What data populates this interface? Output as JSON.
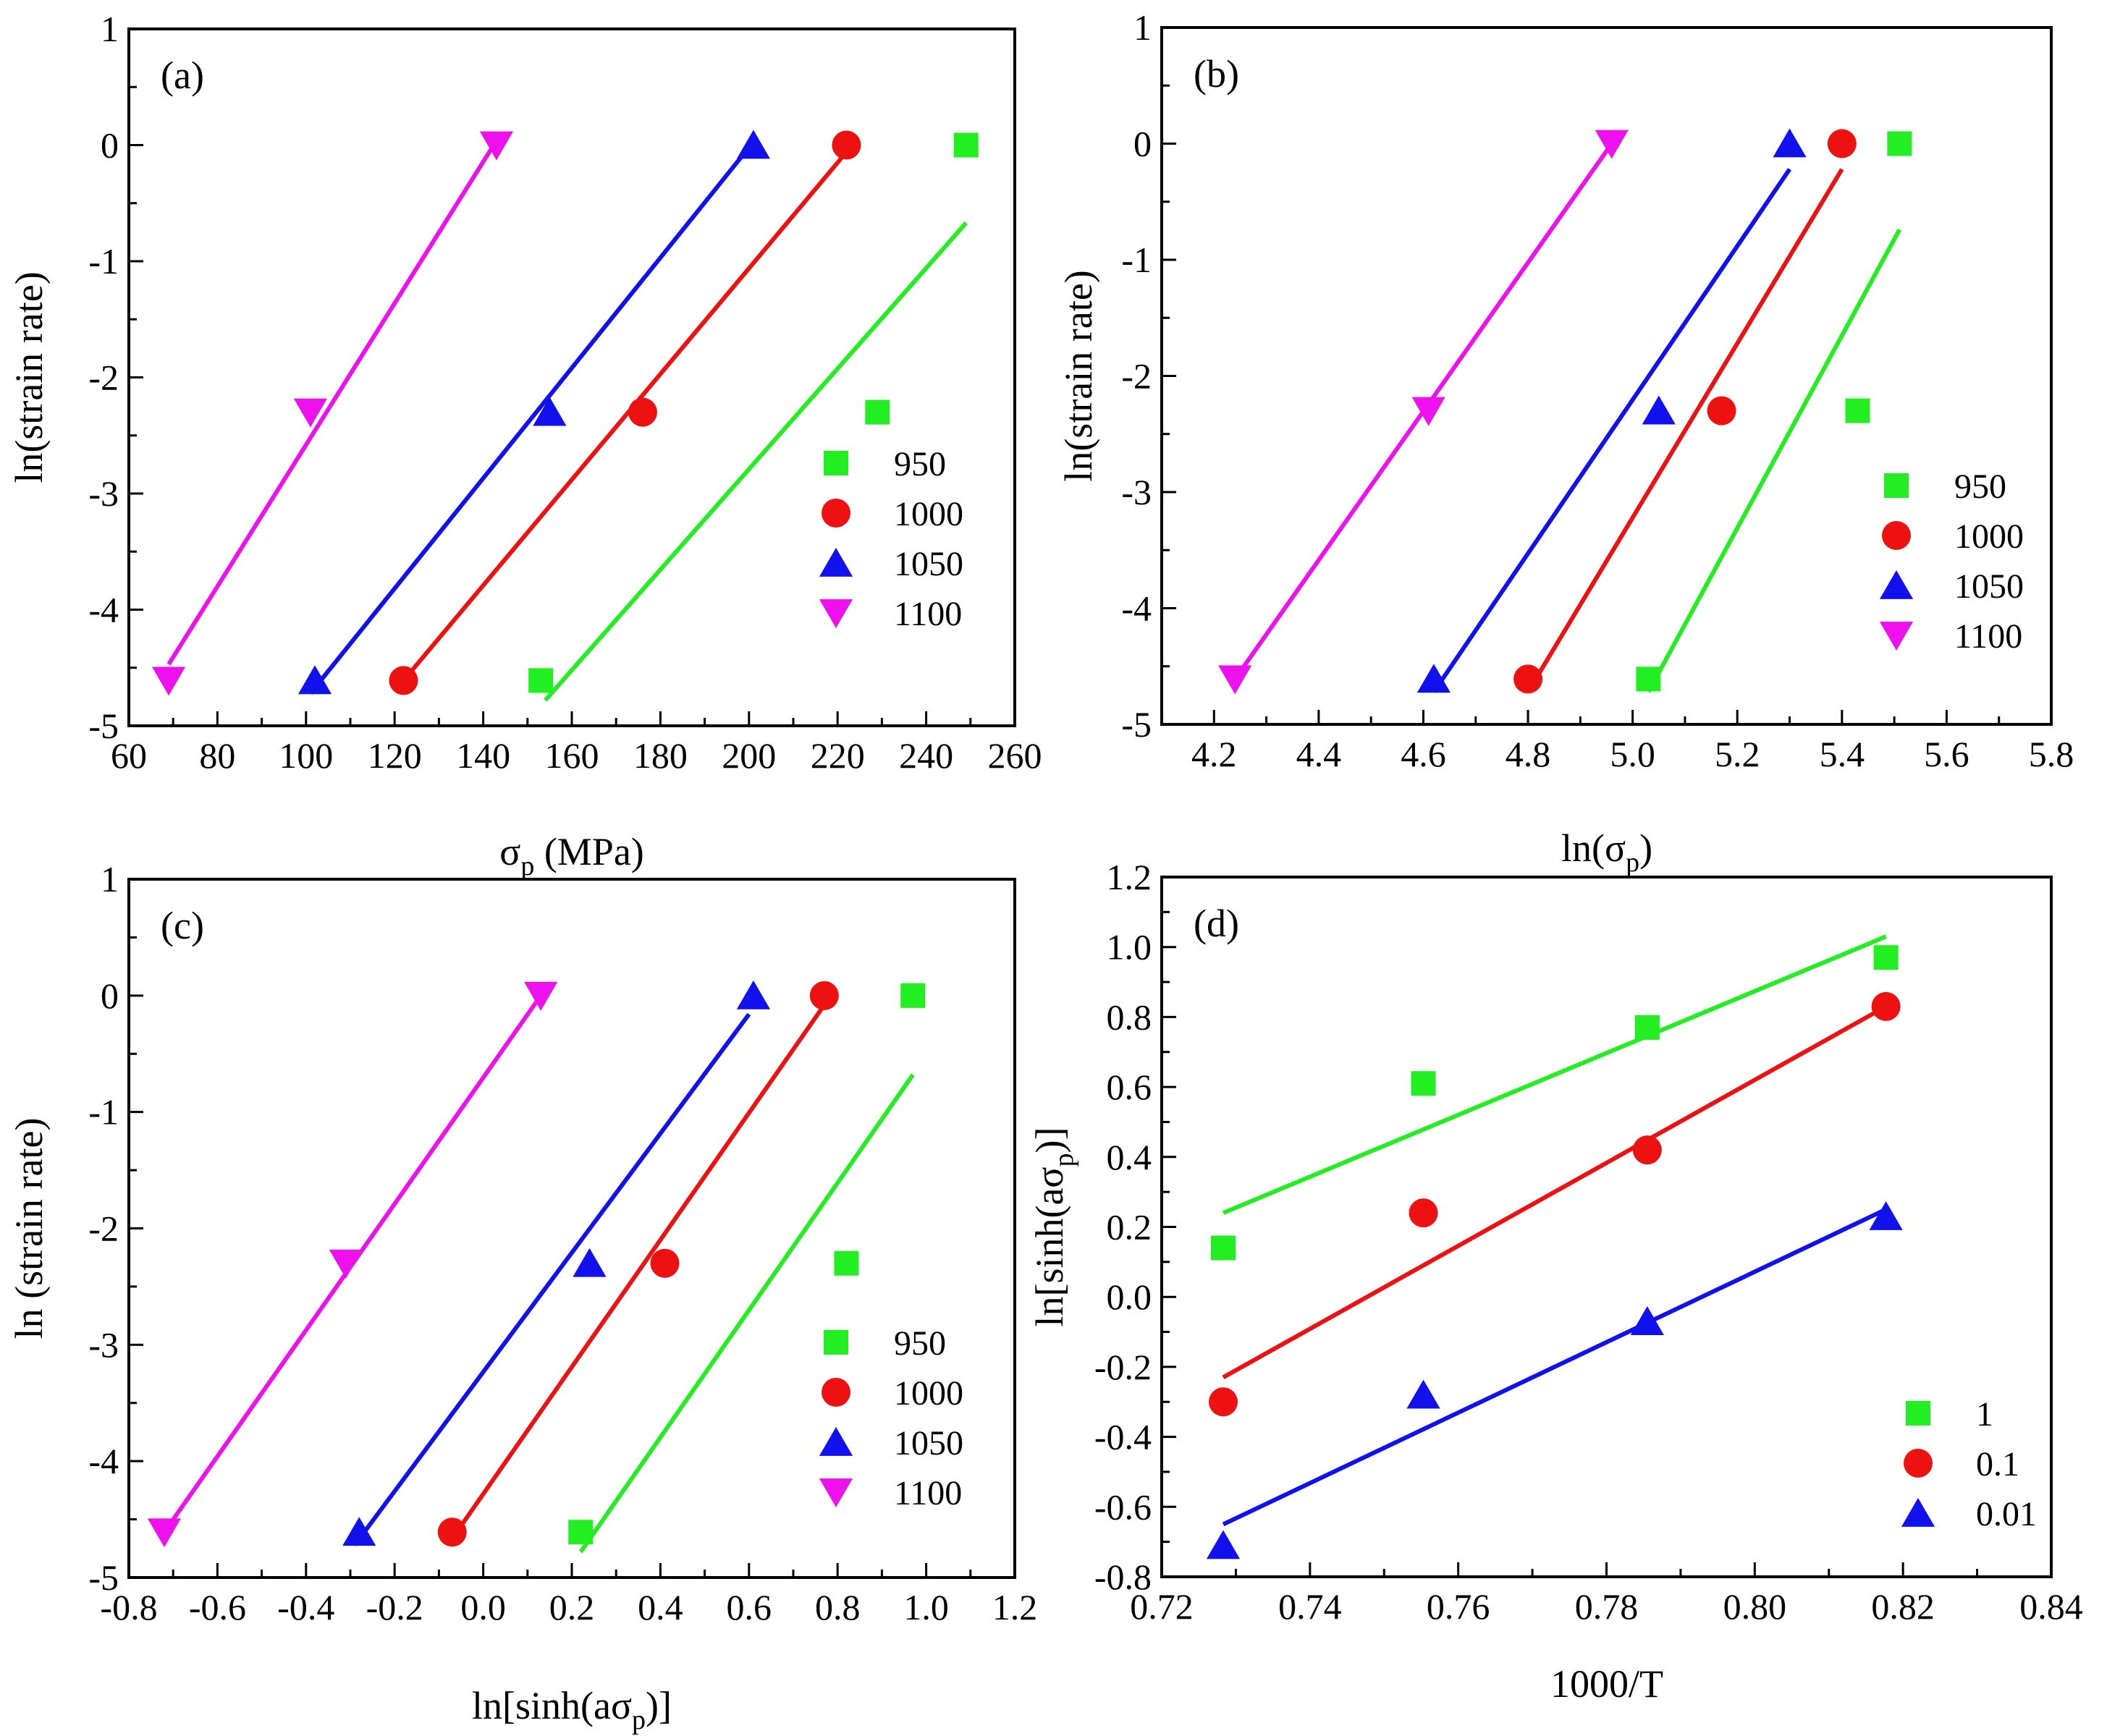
{
  "colors": {
    "950": "#22ee22",
    "1000": "#ee1111",
    "1050": "#1111ee",
    "1100": "#ee11ee",
    "1": "#22ee22",
    "0.1": "#ee1111",
    "0.01": "#1111ee"
  },
  "chart_data": [
    {
      "type": "scatter",
      "panel_label": "(a)",
      "xlabel": "σp (MPa)",
      "ylabel": "ln(strain rate)",
      "xlim": [
        60,
        260
      ],
      "ylim": [
        -5,
        1
      ],
      "xticks": [
        60,
        80,
        100,
        120,
        140,
        160,
        180,
        200,
        220,
        240,
        260
      ],
      "xtick_labels": [
        "60",
        "80",
        "100",
        "120",
        "140",
        "160",
        "180",
        "200",
        "220",
        "240",
        "260"
      ],
      "yticks": [
        -5,
        -4,
        -3,
        -2,
        -1,
        0,
        1
      ],
      "ytick_labels": [
        "-5",
        "-4",
        "-3",
        "-2",
        "-1",
        "0",
        "1"
      ],
      "legend_position": "lower-right",
      "series": [
        {
          "name": "950",
          "marker": "square",
          "color_key": "950",
          "points": [
            [
              153,
              -4.61
            ],
            [
              229,
              -2.3
            ],
            [
              249,
              0
            ]
          ],
          "fit": [
            [
              154,
              -4.78
            ],
            [
              249,
              -0.67
            ]
          ]
        },
        {
          "name": "1000",
          "marker": "circle",
          "color_key": "1000",
          "points": [
            [
              122,
              -4.61
            ],
            [
              176,
              -2.3
            ],
            [
              222,
              0
            ]
          ],
          "fit": [
            [
              122,
              -4.61
            ],
            [
              222,
              -0.06
            ]
          ]
        },
        {
          "name": "1050",
          "marker": "triangle-up",
          "color_key": "1050",
          "points": [
            [
              102,
              -4.61
            ],
            [
              155,
              -2.3
            ],
            [
              201,
              0
            ]
          ],
          "fit": [
            [
              101,
              -4.72
            ],
            [
              200,
              -0.02
            ]
          ]
        },
        {
          "name": "1100",
          "marker": "triangle-down",
          "color_key": "1100",
          "points": [
            [
              69,
              -4.61
            ],
            [
              101,
              -2.3
            ],
            [
              143,
              0
            ]
          ],
          "fit": [
            [
              69,
              -4.47
            ],
            [
              144,
              0.1
            ]
          ]
        }
      ]
    },
    {
      "type": "scatter",
      "panel_label": "(b)",
      "xlabel": "ln(σp)",
      "ylabel": "ln(strain rate)",
      "xlim": [
        4.1,
        5.8
      ],
      "ylim": [
        -5,
        1
      ],
      "xticks": [
        4.2,
        4.4,
        4.6,
        4.8,
        5.0,
        5.2,
        5.4,
        5.6,
        5.8
      ],
      "xtick_labels": [
        "4.2",
        "4.4",
        "4.6",
        "4.8",
        "5.0",
        "5.2",
        "5.4",
        "5.6",
        "5.8"
      ],
      "yticks": [
        -5,
        -4,
        -3,
        -2,
        -1,
        0,
        1
      ],
      "ytick_labels": [
        "-5",
        "-4",
        "-3",
        "-2",
        "-1",
        "0",
        "1"
      ],
      "legend_position": "lower-right",
      "series": [
        {
          "name": "950",
          "marker": "square",
          "color_key": "950",
          "points": [
            [
              5.03,
              -4.61
            ],
            [
              5.43,
              -2.3
            ],
            [
              5.51,
              0
            ]
          ],
          "fit": [
            [
              5.03,
              -4.72
            ],
            [
              5.51,
              -0.74
            ]
          ]
        },
        {
          "name": "1000",
          "marker": "circle",
          "color_key": "1000",
          "points": [
            [
              4.8,
              -4.61
            ],
            [
              5.17,
              -2.3
            ],
            [
              5.4,
              0
            ]
          ],
          "fit": [
            [
              4.8,
              -4.72
            ],
            [
              5.4,
              -0.22
            ]
          ]
        },
        {
          "name": "1050",
          "marker": "triangle-up",
          "color_key": "1050",
          "points": [
            [
              4.62,
              -4.61
            ],
            [
              5.05,
              -2.3
            ],
            [
              5.3,
              0
            ]
          ],
          "fit": [
            [
              4.62,
              -4.72
            ],
            [
              5.3,
              -0.22
            ]
          ]
        },
        {
          "name": "1100",
          "marker": "triangle-down",
          "color_key": "1100",
          "points": [
            [
              4.24,
              -4.61
            ],
            [
              4.61,
              -2.3
            ],
            [
              4.96,
              0
            ]
          ],
          "fit": [
            [
              4.24,
              -4.61
            ],
            [
              4.96,
              0
            ]
          ]
        }
      ]
    },
    {
      "type": "scatter",
      "panel_label": "(c)",
      "xlabel": "ln[sinh(aσp)]",
      "ylabel": "ln (strain rate)",
      "xlim": [
        -0.8,
        1.2
      ],
      "ylim": [
        -5,
        1
      ],
      "xticks": [
        -0.8,
        -0.6,
        -0.4,
        -0.2,
        0.0,
        0.2,
        0.4,
        0.6,
        0.8,
        1.0,
        1.2
      ],
      "xtick_labels": [
        "-0.8",
        "-0.6",
        "-0.4",
        "-0.2",
        "0.0",
        "0.2",
        "0.4",
        "0.6",
        "0.8",
        "1.0",
        "1.2"
      ],
      "yticks": [
        -5,
        -4,
        -3,
        -2,
        -1,
        0,
        1
      ],
      "ytick_labels": [
        "-5",
        "-4",
        "-3",
        "-2",
        "-1",
        "0",
        "1"
      ],
      "legend_position": "lower-right",
      "series": [
        {
          "name": "950",
          "marker": "square",
          "color_key": "950",
          "points": [
            [
              0.22,
              -4.61
            ],
            [
              0.82,
              -2.3
            ],
            [
              0.97,
              0
            ]
          ],
          "fit": [
            [
              0.22,
              -4.78
            ],
            [
              0.97,
              -0.68
            ]
          ]
        },
        {
          "name": "1000",
          "marker": "circle",
          "color_key": "1000",
          "points": [
            [
              -0.07,
              -4.61
            ],
            [
              0.41,
              -2.3
            ],
            [
              0.77,
              0
            ]
          ],
          "fit": [
            [
              -0.06,
              -4.61
            ],
            [
              0.77,
              -0.08
            ]
          ]
        },
        {
          "name": "1050",
          "marker": "triangle-up",
          "color_key": "1050",
          "points": [
            [
              -0.28,
              -4.61
            ],
            [
              0.24,
              -2.3
            ],
            [
              0.61,
              0
            ]
          ],
          "fit": [
            [
              -0.29,
              -4.72
            ],
            [
              0.6,
              -0.16
            ]
          ]
        },
        {
          "name": "1100",
          "marker": "triangle-down",
          "color_key": "1100",
          "points": [
            [
              -0.72,
              -4.61
            ],
            [
              -0.31,
              -2.3
            ],
            [
              0.13,
              0
            ]
          ],
          "fit": [
            [
              -0.72,
              -4.61
            ],
            [
              0.13,
              0
            ]
          ]
        }
      ]
    },
    {
      "type": "scatter",
      "panel_label": "(d)",
      "xlabel": "1000/T",
      "ylabel": "ln[sinh(aσp)]",
      "xlim": [
        0.72,
        0.84
      ],
      "ylim": [
        -0.8,
        1.2
      ],
      "xticks": [
        0.72,
        0.74,
        0.76,
        0.78,
        0.8,
        0.82,
        0.84
      ],
      "xtick_labels": [
        "0.72",
        "0.74",
        "0.76",
        "0.78",
        "0.80",
        "0.82",
        "0.84"
      ],
      "yticks": [
        -0.8,
        -0.6,
        -0.4,
        -0.2,
        0.0,
        0.2,
        0.4,
        0.6,
        0.8,
        1.0,
        1.2
      ],
      "ytick_labels": [
        "-0.8",
        "-0.6",
        "-0.4",
        "-0.2",
        "0.0",
        "0.2",
        "0.4",
        "0.6",
        "0.8",
        "1.0",
        "1.2"
      ],
      "legend_position": "lower-right",
      "series": [
        {
          "name": "1",
          "marker": "square",
          "color_key": "1",
          "points": [
            [
              0.7283,
              0.14
            ],
            [
              0.7553,
              0.61
            ],
            [
              0.7855,
              0.77
            ],
            [
              0.8177,
              0.97
            ]
          ],
          "fit": [
            [
              0.7283,
              0.24
            ],
            [
              0.8177,
              1.03
            ]
          ]
        },
        {
          "name": "0.1",
          "marker": "circle",
          "color_key": "0.1",
          "points": [
            [
              0.7283,
              -0.3
            ],
            [
              0.7553,
              0.24
            ],
            [
              0.7855,
              0.42
            ],
            [
              0.8177,
              0.83
            ]
          ],
          "fit": [
            [
              0.7283,
              -0.23
            ],
            [
              0.8177,
              0.83
            ]
          ]
        },
        {
          "name": "0.01",
          "marker": "triangle-up",
          "color_key": "0.01",
          "points": [
            [
              0.7283,
              -0.71
            ],
            [
              0.7553,
              -0.28
            ],
            [
              0.7855,
              -0.07
            ],
            [
              0.8177,
              0.23
            ]
          ],
          "fit": [
            [
              0.7283,
              -0.65
            ],
            [
              0.8177,
              0.25
            ]
          ]
        }
      ]
    }
  ]
}
